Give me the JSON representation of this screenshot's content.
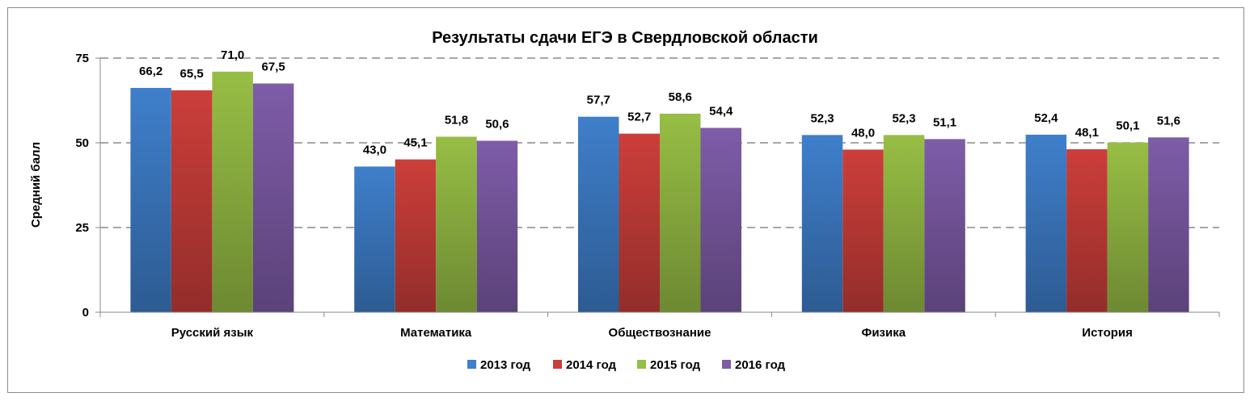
{
  "chart_data": {
    "type": "bar",
    "title": "Результаты сдачи ЕГЭ в Свердловской области",
    "xlabel": "",
    "ylabel": "Средний балл",
    "ylim": [
      0,
      75
    ],
    "yticks": [
      0,
      25,
      50,
      75
    ],
    "grid": "horizontal-dashed",
    "legend_position": "bottom",
    "categories": [
      "Русский язык",
      "Математика",
      "Обществознание",
      "Физика",
      "История"
    ],
    "series": [
      {
        "name": "2013 год",
        "color": "#3F7FCB",
        "values": [
          66.2,
          43.0,
          57.7,
          52.3,
          52.4
        ],
        "labels": [
          "66,2",
          "43,0",
          "57,7",
          "52,3",
          "52,4"
        ]
      },
      {
        "name": "2014 год",
        "color": "#CC3E3A",
        "values": [
          65.5,
          45.1,
          52.7,
          48.0,
          48.1
        ],
        "labels": [
          "65,5",
          "45,1",
          "52,7",
          "48,0",
          "48,1"
        ]
      },
      {
        "name": "2015 год",
        "color": "#97BE45",
        "values": [
          71.0,
          51.8,
          58.6,
          52.3,
          50.1
        ],
        "labels": [
          "71,0",
          "51,8",
          "58,6",
          "52,3",
          "50,1"
        ]
      },
      {
        "name": "2016 год",
        "color": "#7E5CA8",
        "values": [
          67.5,
          50.6,
          54.4,
          51.1,
          51.6
        ],
        "labels": [
          "67,5",
          "50,6",
          "54,4",
          "51,1",
          "51,6"
        ]
      }
    ]
  }
}
